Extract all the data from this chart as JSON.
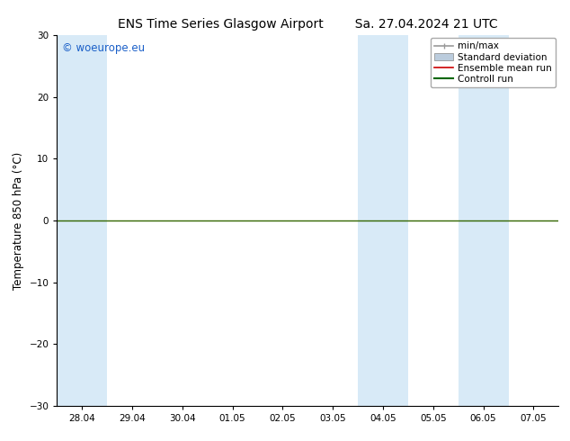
{
  "title_left": "ENS Time Series Glasgow Airport",
  "title_right": "Sa. 27.04.2024 21 UTC",
  "ylabel": "Temperature 850 hPa (°C)",
  "ylim": [
    -30,
    30
  ],
  "yticks": [
    -30,
    -20,
    -10,
    0,
    10,
    20,
    30
  ],
  "x_tick_labels": [
    "28.04",
    "29.04",
    "30.04",
    "01.05",
    "02.05",
    "03.05",
    "04.05",
    "05.05",
    "06.05",
    "07.05"
  ],
  "x_tick_positions": [
    0,
    1,
    2,
    3,
    4,
    5,
    6,
    7,
    8,
    9
  ],
  "xlim": [
    -0.5,
    9.5
  ],
  "shaded_bands": [
    {
      "xmin": -0.5,
      "xmax": 0.5
    },
    {
      "xmin": 5.5,
      "xmax": 6.5
    },
    {
      "xmin": 7.5,
      "xmax": 8.5
    }
  ],
  "hline_y": 0,
  "hline_color": "#336600",
  "bg_color": "#ffffff",
  "plot_bg_color": "#ffffff",
  "band_color": "#d8eaf7",
  "watermark": "© woeurope.eu",
  "watermark_color": "#1a5fc8",
  "legend_entries": [
    {
      "label": "min/max",
      "color": "#999999",
      "lw": 1.2,
      "style": "minmax"
    },
    {
      "label": "Standard deviation",
      "color": "#bbccdd",
      "lw": 6,
      "style": "band"
    },
    {
      "label": "Ensemble mean run",
      "color": "#cc0000",
      "lw": 1.2,
      "style": "line"
    },
    {
      "label": "Controll run",
      "color": "#006600",
      "lw": 1.5,
      "style": "line"
    }
  ],
  "title_fontsize": 10,
  "tick_fontsize": 7.5,
  "ylabel_fontsize": 8.5,
  "watermark_fontsize": 8.5,
  "legend_fontsize": 7.5
}
